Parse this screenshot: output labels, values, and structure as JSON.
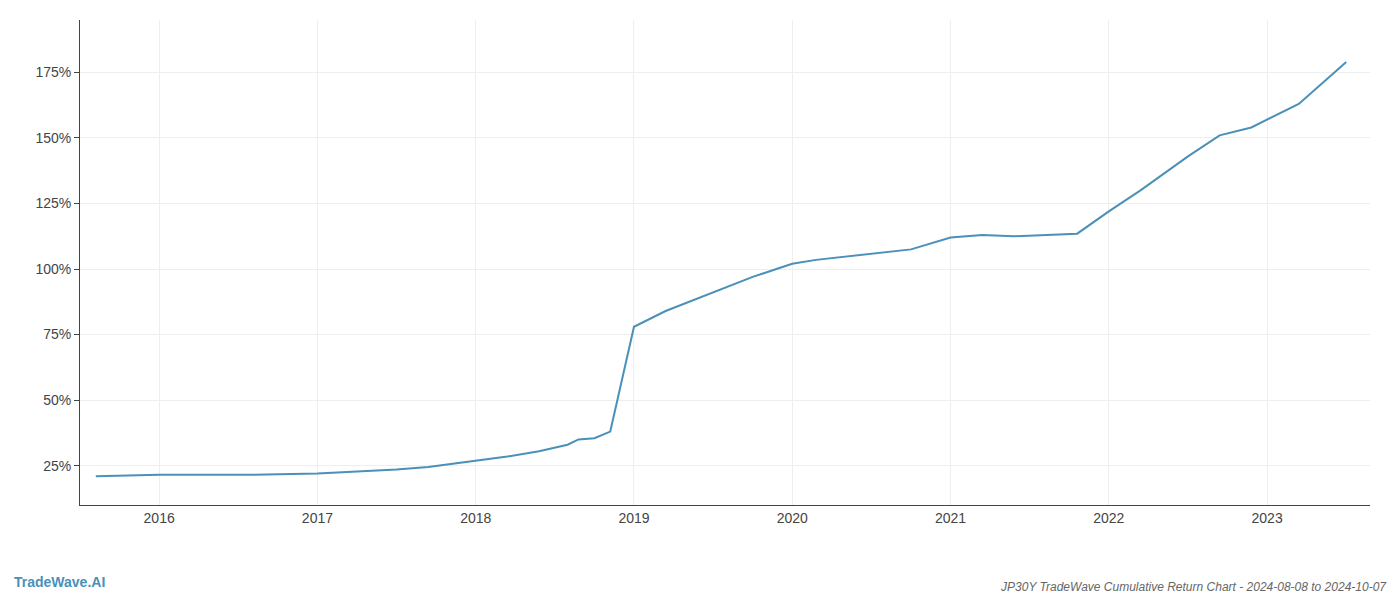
{
  "chart_data": {
    "type": "line",
    "title": "JP30Y TradeWave Cumulative Return Chart - 2024-08-08 to 2024-10-07",
    "annotations": [
      "TradeWave.AI"
    ],
    "color": "#4a90b8",
    "grid": true,
    "x": [
      2015.6,
      2016.0,
      2016.3,
      2016.6,
      2017.0,
      2017.2,
      2017.5,
      2017.7,
      2018.0,
      2018.2,
      2018.4,
      2018.58,
      2018.65,
      2018.75,
      2018.85,
      2019.0,
      2019.2,
      2019.5,
      2019.75,
      2019.9,
      2020.0,
      2020.15,
      2020.3,
      2020.5,
      2020.75,
      2021.0,
      2021.2,
      2021.4,
      2021.6,
      2021.8,
      2022.0,
      2022.2,
      2022.5,
      2022.7,
      2022.9,
      2023.0,
      2023.2,
      2023.5
    ],
    "values": [
      21.0,
      21.5,
      21.5,
      21.5,
      22.0,
      22.5,
      23.5,
      24.5,
      27.0,
      28.5,
      30.5,
      33.0,
      35.0,
      35.5,
      38.0,
      78.0,
      84.0,
      91.0,
      97.0,
      100.0,
      102.0,
      103.5,
      104.5,
      106.0,
      107.5,
      112.0,
      113.0,
      112.5,
      113.0,
      113.5,
      122.0,
      130.0,
      143.0,
      151.0,
      154.0,
      157.0,
      163.0,
      179.0
    ],
    "xlim": [
      2015.5,
      2023.65
    ],
    "ylim": [
      10,
      195
    ],
    "xticks": [
      2016,
      2017,
      2018,
      2019,
      2020,
      2021,
      2022,
      2023
    ],
    "yticks": [
      {
        "value": 25,
        "label": "25%"
      },
      {
        "value": 50,
        "label": "50%"
      },
      {
        "value": 75,
        "label": "75%"
      },
      {
        "value": 100,
        "label": "100%"
      },
      {
        "value": 125,
        "label": "125%"
      },
      {
        "value": 150,
        "label": "150%"
      },
      {
        "value": 175,
        "label": "175%"
      }
    ]
  }
}
